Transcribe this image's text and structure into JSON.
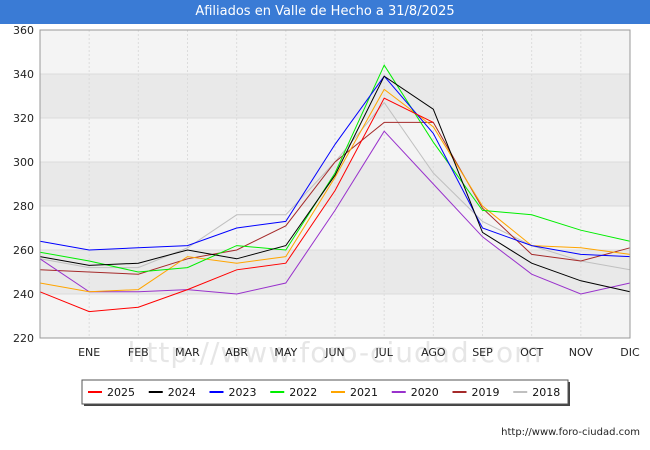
{
  "header": {
    "title": "Afiliados en Valle de Hecho a 31/8/2025"
  },
  "watermark": "http://www.foro-ciudad.com",
  "source": "http://www.foro-ciudad.com",
  "chart_data": {
    "type": "line",
    "title": "Afiliados en Valle de Hecho a 31/8/2025",
    "xlabel": "",
    "ylabel": "",
    "categories": [
      "",
      "ENE",
      "FEB",
      "MAR",
      "ABR",
      "MAY",
      "JUN",
      "JUL",
      "AGO",
      "SEP",
      "OCT",
      "NOV",
      "DIC"
    ],
    "yticks": [
      220,
      240,
      260,
      280,
      300,
      320,
      340,
      360
    ],
    "ylim": [
      220,
      360
    ],
    "grid": true,
    "legend_position": "bottom",
    "series": [
      {
        "name": "2025",
        "color": "#ff0000",
        "values": [
          241,
          232,
          234,
          242,
          251,
          254,
          287,
          329,
          318,
          null,
          null,
          null,
          null
        ]
      },
      {
        "name": "2024",
        "color": "#000000",
        "values": [
          257,
          253,
          254,
          260,
          256,
          262,
          294,
          339,
          324,
          268,
          254,
          246,
          241
        ]
      },
      {
        "name": "2023",
        "color": "#0000ff",
        "values": [
          264,
          260,
          261,
          262,
          270,
          273,
          308,
          339,
          313,
          270,
          262,
          258,
          257
        ]
      },
      {
        "name": "2022",
        "color": "#00ee00",
        "values": [
          259,
          255,
          250,
          252,
          262,
          260,
          295,
          344,
          309,
          278,
          276,
          269,
          264
        ]
      },
      {
        "name": "2021",
        "color": "#ffa500",
        "values": [
          245,
          241,
          242,
          257,
          254,
          257,
          293,
          333,
          316,
          280,
          262,
          261,
          258
        ]
      },
      {
        "name": "2020",
        "color": "#9932cc",
        "values": [
          256,
          241,
          241,
          242,
          240,
          245,
          278,
          314,
          290,
          266,
          249,
          240,
          245
        ]
      },
      {
        "name": "2019",
        "color": "#a52a2a",
        "values": [
          251,
          250,
          249,
          256,
          260,
          271,
          300,
          318,
          318,
          279,
          258,
          255,
          261
        ]
      },
      {
        "name": "2018",
        "color": "#c0c0c0",
        "values": [
          256,
          252,
          252,
          261,
          276,
          276,
          300,
          327,
          295,
          273,
          262,
          255,
          251
        ]
      }
    ]
  }
}
